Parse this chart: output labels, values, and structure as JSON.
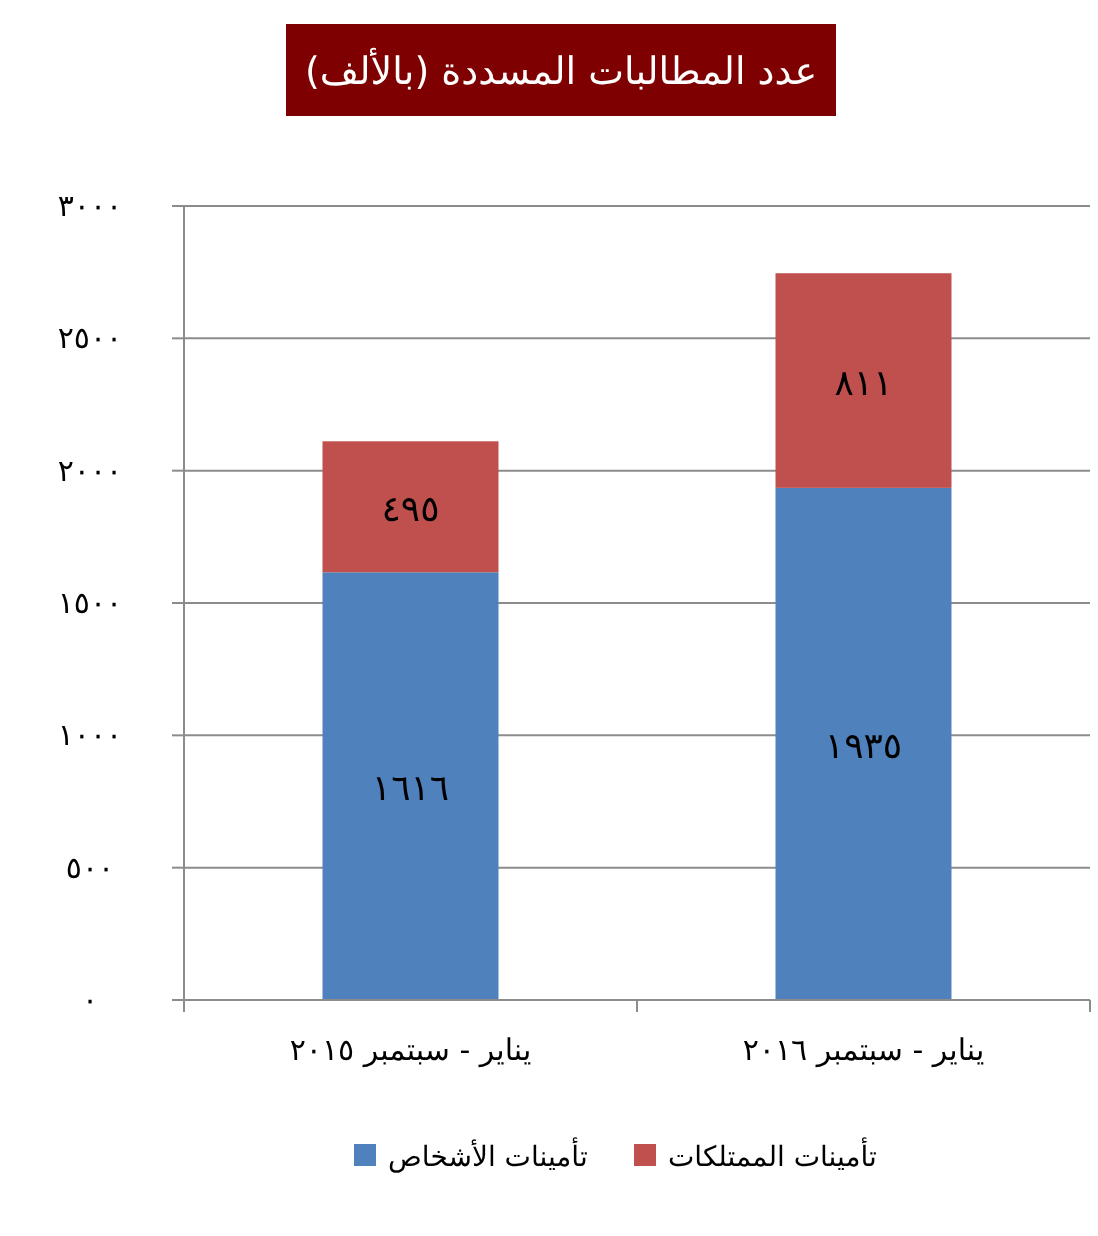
{
  "chart_data": {
    "type": "bar",
    "title": "عدد المطالبات المسددة (بالألف)",
    "categories": [
      "يناير - سبتمبر ٢٠١٥",
      "يناير - سبتمبر ٢٠١٦"
    ],
    "stacked": true,
    "series": [
      {
        "name": "تأمينات الأشخاص",
        "color": "#4f81bd",
        "values": [
          1616,
          1935
        ],
        "value_labels": [
          "١٦١٦",
          "١٩٣٥"
        ]
      },
      {
        "name": "تأمينات الممتلكات",
        "color": "#c0504d",
        "values": [
          495,
          811
        ],
        "value_labels": [
          "٤٩٥",
          "٨١١"
        ]
      }
    ],
    "ylim": [
      0,
      3000
    ],
    "yticks": [
      {
        "value": 0,
        "label": "٠"
      },
      {
        "value": 500,
        "label": "٥٠٠"
      },
      {
        "value": 1000,
        "label": "١٠٠٠"
      },
      {
        "value": 1500,
        "label": "١٥٠٠"
      },
      {
        "value": 2000,
        "label": "٢٠٠٠"
      },
      {
        "value": 2500,
        "label": "٢٥٠٠"
      },
      {
        "value": 3000,
        "label": "٣٠٠٠"
      }
    ],
    "grid": "y",
    "legend": "bottom"
  }
}
